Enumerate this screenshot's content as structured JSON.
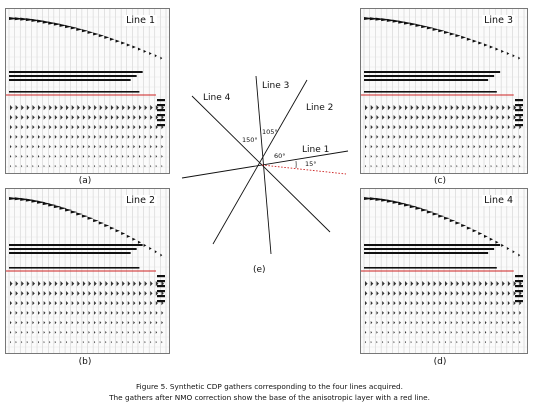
{
  "panels": {
    "a": {
      "letter": "(a)",
      "line_label": "Line 1"
    },
    "b": {
      "letter": "(b)",
      "line_label": "Line 2"
    },
    "c": {
      "letter": "(c)",
      "line_label": "Line 3"
    },
    "d": {
      "letter": "(d)",
      "line_label": "Line 4"
    }
  },
  "geometry_diagram": {
    "letter": "(e)",
    "lines": [
      {
        "label": "Line 1",
        "angle_label": "15°"
      },
      {
        "label": "Line 2",
        "angle_label": "60°"
      },
      {
        "label": "Line 3",
        "angle_label": "105°"
      },
      {
        "label": "Line 4",
        "angle_label": "150°"
      }
    ]
  },
  "caption": {
    "line1": "Figure 5.  Synthetic CDP gathers corresponding to the four lines acquired.",
    "line2": "The gathers after NMO correction show the base of the anisotropic layer with a red line."
  },
  "colors": {
    "wiggle": "#111111",
    "grid": "#bcbcbc",
    "red_line": "#cc2222",
    "dotted": "#cc2222"
  }
}
